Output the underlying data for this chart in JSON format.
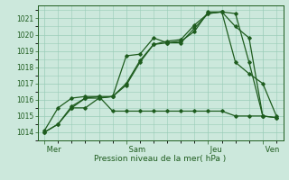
{
  "xlabel": "Pression niveau de la mer( hPa )",
  "bg_color": "#cce8dc",
  "grid_color": "#99ccb8",
  "line_color": "#1e5c1e",
  "ylim": [
    1013.5,
    1021.8
  ],
  "yticks": [
    1014,
    1015,
    1016,
    1017,
    1018,
    1019,
    1020,
    1021
  ],
  "day_labels": [
    " Mer",
    " Sam",
    " Jeu",
    " Ven"
  ],
  "day_positions": [
    0,
    24,
    48,
    64
  ],
  "xlim": [
    -2,
    70
  ],
  "minor_x_step": 4,
  "line1_x": [
    0,
    4,
    8,
    12,
    16,
    20,
    24,
    28,
    32,
    36,
    40,
    44,
    48,
    52,
    56,
    60,
    64,
    68
  ],
  "line1_y": [
    1014.0,
    1014.5,
    1015.6,
    1016.1,
    1016.2,
    1016.2,
    1017.0,
    1018.4,
    1019.4,
    1019.5,
    1019.5,
    1020.4,
    1021.3,
    1021.4,
    1021.3,
    1018.3,
    1015.0,
    1014.9
  ],
  "line2_x": [
    0,
    4,
    8,
    12,
    16,
    20,
    24,
    28,
    32,
    36,
    40,
    44,
    48,
    52,
    56,
    60,
    64,
    68
  ],
  "line2_y": [
    1014.0,
    1014.5,
    1015.5,
    1016.1,
    1016.1,
    1016.2,
    1018.7,
    1018.8,
    1019.8,
    1019.5,
    1019.6,
    1020.2,
    1021.4,
    1021.4,
    1020.5,
    1019.8,
    1015.0,
    1014.9
  ],
  "line3_x": [
    0,
    4,
    8,
    12,
    16,
    20,
    24,
    28,
    32,
    36,
    40,
    44,
    48,
    52,
    56,
    60,
    64
  ],
  "line3_y": [
    1014.1,
    1015.5,
    1016.1,
    1016.2,
    1016.2,
    1015.3,
    1015.3,
    1015.3,
    1015.3,
    1015.3,
    1015.3,
    1015.3,
    1015.3,
    1015.3,
    1015.0,
    1015.0,
    1015.0
  ],
  "line4_x": [
    8,
    12,
    16,
    20,
    24,
    28,
    32,
    36,
    40,
    44,
    48,
    52,
    56,
    60,
    64,
    68
  ],
  "line4_y": [
    1015.5,
    1015.5,
    1016.1,
    1016.2,
    1016.9,
    1018.3,
    1019.4,
    1019.6,
    1019.7,
    1020.6,
    1021.3,
    1021.4,
    1018.3,
    1017.6,
    1017.0,
    1015.0
  ]
}
